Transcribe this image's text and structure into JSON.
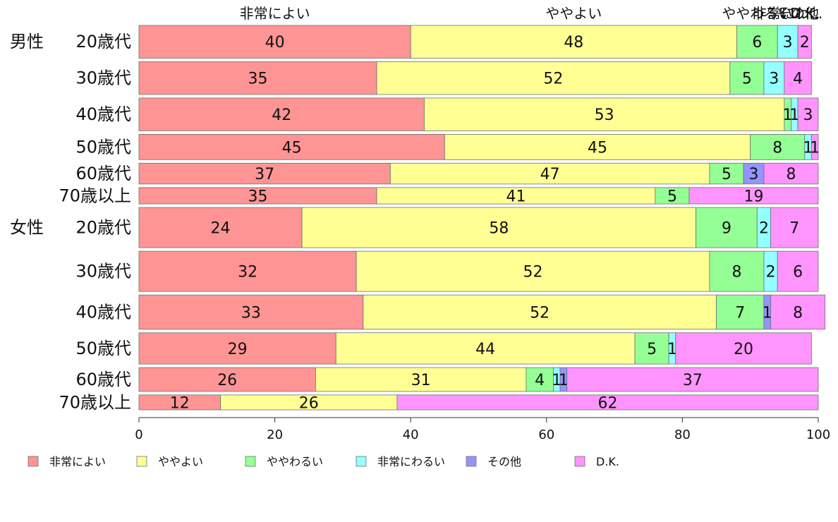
{
  "chart_data": {
    "type": "bar",
    "orientation": "horizontal",
    "stacked": true,
    "xlim": [
      0,
      100
    ],
    "xticks": [
      0,
      20,
      40,
      60,
      80,
      100
    ],
    "grid": false,
    "legend_position": "bottom",
    "top_labels": [
      "非常によい",
      "ややよい",
      "ややわるい",
      "非常にわ...",
      "その他",
      "D.K."
    ],
    "series": [
      {
        "name": "非常によい",
        "color": "#ff9494",
        "values": [
          40,
          35,
          42,
          45,
          37,
          35,
          24,
          32,
          33,
          29,
          26,
          12
        ]
      },
      {
        "name": "ややよい",
        "color": "#ffff94",
        "values": [
          48,
          52,
          53,
          45,
          47,
          41,
          58,
          52,
          52,
          44,
          31,
          26
        ]
      },
      {
        "name": "ややわるい",
        "color": "#94ff94",
        "values": [
          6,
          5,
          1,
          8,
          5,
          5,
          9,
          8,
          7,
          5,
          4,
          0
        ]
      },
      {
        "name": "非常にわるい",
        "color": "#94ffff",
        "values": [
          3,
          3,
          1,
          1,
          0,
          0,
          2,
          2,
          0,
          1,
          1,
          0
        ]
      },
      {
        "name": "その他",
        "color": "#9494ff",
        "values": [
          0,
          0,
          0,
          0,
          3,
          0,
          0,
          0,
          1,
          0,
          1,
          0
        ]
      },
      {
        "name": "D.K.",
        "color": "#ff94ff",
        "values": [
          2,
          4,
          3,
          1,
          8,
          19,
          7,
          6,
          8,
          20,
          37,
          62
        ]
      }
    ],
    "rows": [
      {
        "group": "男性",
        "label": "20歳代"
      },
      {
        "group": "",
        "label": "30歳代"
      },
      {
        "group": "",
        "label": "40歳代"
      },
      {
        "group": "",
        "label": "50歳代"
      },
      {
        "group": "",
        "label": "60歳代"
      },
      {
        "group": "",
        "label": "70歳以上"
      },
      {
        "group": "女性",
        "label": "20歳代"
      },
      {
        "group": "",
        "label": "30歳代"
      },
      {
        "group": "",
        "label": "40歳代"
      },
      {
        "group": "",
        "label": "50歳代"
      },
      {
        "group": "",
        "label": "60歳代"
      },
      {
        "group": "",
        "label": "70歳以上"
      }
    ],
    "row_weights": [
      44,
      44,
      44,
      34,
      28,
      22,
      54,
      54,
      46,
      42,
      32,
      20
    ]
  }
}
